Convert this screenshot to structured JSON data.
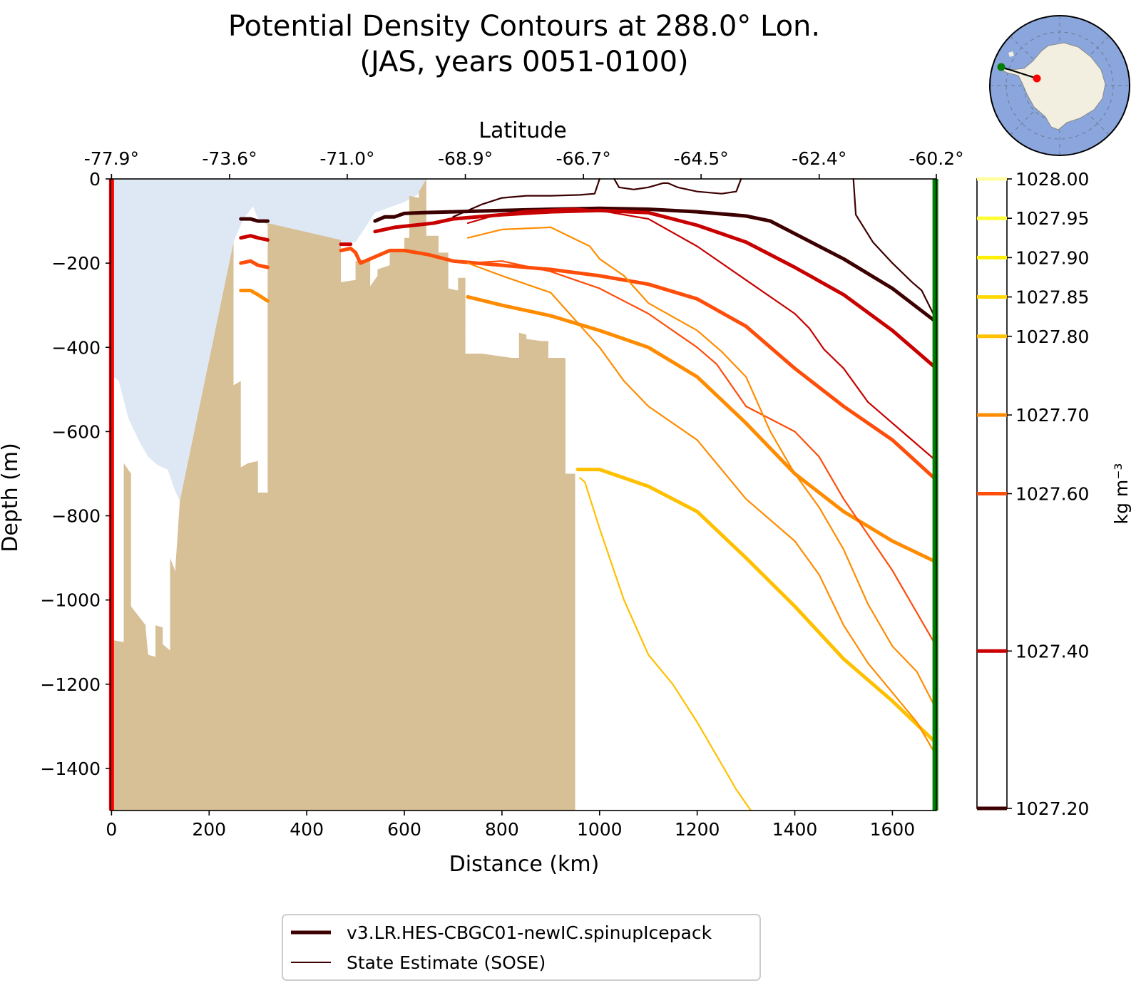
{
  "chart_data": {
    "type": "line",
    "title": "Potential Density Contours at 288.0° Lon.",
    "subtitle": "(JAS, years 0051-0100)",
    "xlabel": "Distance (km)",
    "ylabel": "Depth (m)",
    "top_axis_label": "Latitude",
    "xlim": [
      -2,
      1690
    ],
    "ylim": [
      -1500,
      0
    ],
    "x_ticks": [
      0,
      200,
      400,
      600,
      800,
      1000,
      1200,
      1400,
      1600
    ],
    "y_ticks": [
      0,
      -200,
      -400,
      -600,
      -800,
      -1000,
      -1200,
      -1400
    ],
    "lat_ticks": [
      {
        "x": 0,
        "label": "-77.9°"
      },
      {
        "x": 242,
        "label": "-73.6°"
      },
      {
        "x": 483,
        "label": "-71.0°"
      },
      {
        "x": 725,
        "label": "-68.9°"
      },
      {
        "x": 967,
        "label": "-66.7°"
      },
      {
        "x": 1208,
        "label": "-64.5°"
      },
      {
        "x": 1450,
        "label": "-62.4°"
      },
      {
        "x": 1690,
        "label": "-60.2°"
      }
    ],
    "colorbar": {
      "label": "kg m⁻³",
      "levels": [
        {
          "value": 1027.2,
          "label": "1027.20",
          "color": "#3d0000"
        },
        {
          "value": 1027.4,
          "label": "1027.40",
          "color": "#c80000"
        },
        {
          "value": 1027.6,
          "label": "1027.60",
          "color": "#ff4d0a"
        },
        {
          "value": 1027.7,
          "label": "1027.70",
          "color": "#ff8c00"
        },
        {
          "value": 1027.8,
          "label": "1027.80",
          "color": "#ffc000"
        },
        {
          "value": 1027.85,
          "label": "1027.85",
          "color": "#ffd800"
        },
        {
          "value": 1027.9,
          "label": "1027.90",
          "color": "#fff000"
        },
        {
          "value": 1027.95,
          "label": "1027.95",
          "color": "#ffff30"
        },
        {
          "value": 1028.0,
          "label": "1028.00",
          "color": "#ffffa0"
        }
      ]
    },
    "legend": {
      "placement": "bottom-center",
      "entries": [
        {
          "label": "v3.LR.HES-CBGC01-newIC.spinupIcepack",
          "style": "thick",
          "color": "#3d0000"
        },
        {
          "label": "State Estimate (SOSE)",
          "style": "thin",
          "color": "#3d0000"
        }
      ]
    },
    "section_markers": {
      "start_color": "#ff0000",
      "end_color": "#008000",
      "start_x": 0,
      "end_x": 1688
    },
    "fills": {
      "ice_shelf_color": "#dee8f5",
      "bathymetry_color": "#d7bf96"
    },
    "ice_shelf_base": [
      [
        0,
        -465
      ],
      [
        15,
        -480
      ],
      [
        35,
        -570
      ],
      [
        60,
        -630
      ],
      [
        75,
        -660
      ],
      [
        95,
        -680
      ],
      [
        115,
        -690
      ],
      [
        130,
        -740
      ],
      [
        140,
        -765
      ],
      [
        250,
        -150
      ],
      [
        270,
        -95
      ],
      [
        290,
        -65
      ],
      [
        300,
        -95
      ],
      [
        320,
        -110
      ],
      [
        400,
        -140
      ],
      [
        470,
        -150
      ],
      [
        500,
        -150
      ],
      [
        540,
        -80
      ],
      [
        600,
        -55
      ],
      [
        630,
        -35
      ],
      [
        645,
        0
      ]
    ],
    "bathymetry": [
      [
        0,
        -1500
      ],
      [
        0,
        -1095
      ],
      [
        25,
        -1100
      ],
      [
        25,
        -675
      ],
      [
        40,
        -700
      ],
      [
        40,
        -1015
      ],
      [
        70,
        -1060
      ],
      [
        70,
        -1070
      ],
      [
        75,
        -1130
      ],
      [
        90,
        -1135
      ],
      [
        90,
        -1060
      ],
      [
        105,
        -1065
      ],
      [
        105,
        -1105
      ],
      [
        120,
        -1120
      ],
      [
        120,
        -900
      ],
      [
        130,
        -930
      ],
      [
        130,
        -940
      ],
      [
        140,
        -765
      ],
      [
        250,
        -150
      ],
      [
        250,
        -490
      ],
      [
        265,
        -480
      ],
      [
        265,
        -685
      ],
      [
        280,
        -675
      ],
      [
        300,
        -670
      ],
      [
        300,
        -745
      ],
      [
        320,
        -745
      ],
      [
        320,
        -105
      ],
      [
        470,
        -145
      ],
      [
        470,
        -245
      ],
      [
        500,
        -240
      ],
      [
        500,
        -195
      ],
      [
        530,
        -190
      ],
      [
        530,
        -255
      ],
      [
        545,
        -230
      ],
      [
        545,
        -215
      ],
      [
        570,
        -205
      ],
      [
        570,
        -175
      ],
      [
        600,
        -170
      ],
      [
        600,
        -140
      ],
      [
        610,
        -140
      ],
      [
        610,
        -40
      ],
      [
        630,
        -45
      ],
      [
        630,
        -30
      ],
      [
        645,
        0
      ],
      [
        645,
        -135
      ],
      [
        670,
        -135
      ],
      [
        670,
        -175
      ],
      [
        690,
        -175
      ],
      [
        690,
        -260
      ],
      [
        710,
        -265
      ],
      [
        710,
        -235
      ],
      [
        725,
        -235
      ],
      [
        725,
        -415
      ],
      [
        760,
        -415
      ],
      [
        790,
        -420
      ],
      [
        820,
        -425
      ],
      [
        835,
        -425
      ],
      [
        835,
        -365
      ],
      [
        850,
        -370
      ],
      [
        850,
        -380
      ],
      [
        880,
        -385
      ],
      [
        895,
        -385
      ],
      [
        895,
        -425
      ],
      [
        908,
        -425
      ],
      [
        908,
        -425
      ],
      [
        930,
        -425
      ],
      [
        930,
        -700
      ],
      [
        950,
        -700
      ],
      [
        950,
        -1500
      ]
    ],
    "series": [
      {
        "source": "model",
        "level": 1027.2,
        "points": [
          [
            265,
            -95
          ],
          [
            285,
            -95
          ],
          [
            300,
            -100
          ],
          [
            320,
            -100
          ]
        ]
      },
      {
        "source": "model",
        "level": 1027.2,
        "points": [
          [
            540,
            -100
          ],
          [
            560,
            -90
          ],
          [
            580,
            -90
          ],
          [
            600,
            -82
          ],
          [
            640,
            -80
          ],
          [
            700,
            -78
          ],
          [
            800,
            -75
          ],
          [
            900,
            -72
          ],
          [
            1000,
            -70
          ],
          [
            1100,
            -72
          ],
          [
            1200,
            -78
          ],
          [
            1300,
            -88
          ],
          [
            1350,
            -100
          ],
          [
            1400,
            -130
          ],
          [
            1500,
            -190
          ],
          [
            1600,
            -260
          ],
          [
            1690,
            -340
          ]
        ]
      },
      {
        "source": "model",
        "level": 1027.4,
        "points": [
          [
            265,
            -140
          ],
          [
            285,
            -135
          ],
          [
            300,
            -140
          ],
          [
            320,
            -145
          ]
        ]
      },
      {
        "source": "model",
        "level": 1027.4,
        "points": [
          [
            470,
            -155
          ],
          [
            490,
            -155
          ]
        ]
      },
      {
        "source": "model",
        "level": 1027.4,
        "points": [
          [
            540,
            -125
          ],
          [
            580,
            -115
          ],
          [
            620,
            -110
          ],
          [
            660,
            -105
          ],
          [
            700,
            -95
          ],
          [
            800,
            -85
          ],
          [
            900,
            -78
          ],
          [
            1000,
            -75
          ],
          [
            1100,
            -80
          ],
          [
            1200,
            -110
          ],
          [
            1300,
            -150
          ],
          [
            1400,
            -210
          ],
          [
            1500,
            -275
          ],
          [
            1600,
            -360
          ],
          [
            1690,
            -450
          ]
        ]
      },
      {
        "source": "model",
        "level": 1027.6,
        "points": [
          [
            265,
            -200
          ],
          [
            285,
            -195
          ],
          [
            300,
            -205
          ],
          [
            320,
            -210
          ]
        ]
      },
      {
        "source": "model",
        "level": 1027.6,
        "points": [
          [
            470,
            -170
          ],
          [
            490,
            -165
          ],
          [
            500,
            -175
          ],
          [
            510,
            -200
          ],
          [
            530,
            -190
          ],
          [
            550,
            -180
          ],
          [
            570,
            -170
          ],
          [
            600,
            -170
          ],
          [
            650,
            -180
          ],
          [
            700,
            -195
          ],
          [
            800,
            -205
          ],
          [
            900,
            -215
          ],
          [
            1000,
            -230
          ],
          [
            1100,
            -250
          ],
          [
            1200,
            -285
          ],
          [
            1300,
            -350
          ],
          [
            1400,
            -450
          ],
          [
            1500,
            -540
          ],
          [
            1600,
            -620
          ],
          [
            1690,
            -715
          ]
        ]
      },
      {
        "source": "model",
        "level": 1027.7,
        "points": [
          [
            265,
            -265
          ],
          [
            285,
            -265
          ],
          [
            300,
            -275
          ],
          [
            320,
            -290
          ]
        ]
      },
      {
        "source": "model",
        "level": 1027.7,
        "points": [
          [
            730,
            -280
          ],
          [
            800,
            -300
          ],
          [
            900,
            -325
          ],
          [
            1000,
            -360
          ],
          [
            1100,
            -400
          ],
          [
            1200,
            -470
          ],
          [
            1300,
            -580
          ],
          [
            1400,
            -700
          ],
          [
            1500,
            -790
          ],
          [
            1600,
            -860
          ],
          [
            1690,
            -910
          ]
        ]
      },
      {
        "source": "model",
        "level": 1027.8,
        "points": [
          [
            955,
            -690
          ],
          [
            1000,
            -690
          ],
          [
            1100,
            -730
          ],
          [
            1200,
            -790
          ],
          [
            1300,
            -900
          ],
          [
            1400,
            -1015
          ],
          [
            1500,
            -1140
          ],
          [
            1600,
            -1240
          ],
          [
            1690,
            -1340
          ]
        ]
      },
      {
        "source": "sose",
        "level": 1027.2,
        "points": [
          [
            700,
            -90
          ],
          [
            760,
            -60
          ],
          [
            800,
            -45
          ],
          [
            850,
            -40
          ],
          [
            900,
            -40
          ],
          [
            960,
            -38
          ],
          [
            990,
            -35
          ],
          [
            1000,
            0
          ]
        ]
      },
      {
        "source": "sose",
        "level": 1027.2,
        "points": [
          [
            1030,
            0
          ],
          [
            1040,
            -20
          ],
          [
            1070,
            -25
          ],
          [
            1100,
            -20
          ],
          [
            1130,
            -10
          ],
          [
            1140,
            -10
          ],
          [
            1160,
            -20
          ],
          [
            1200,
            -30
          ],
          [
            1250,
            -35
          ],
          [
            1280,
            -30
          ],
          [
            1290,
            0
          ]
        ]
      },
      {
        "source": "sose",
        "level": 1027.2,
        "points": [
          [
            1520,
            0
          ],
          [
            1525,
            -85
          ],
          [
            1560,
            -150
          ],
          [
            1600,
            -200
          ],
          [
            1640,
            -245
          ],
          [
            1660,
            -265
          ],
          [
            1690,
            -335
          ]
        ]
      },
      {
        "source": "sose",
        "level": 1027.4,
        "points": [
          [
            730,
            -105
          ],
          [
            790,
            -85
          ],
          [
            850,
            -75
          ],
          [
            950,
            -70
          ],
          [
            1000,
            -75
          ],
          [
            1100,
            -95
          ],
          [
            1200,
            -160
          ],
          [
            1300,
            -240
          ],
          [
            1400,
            -320
          ],
          [
            1430,
            -355
          ],
          [
            1460,
            -405
          ],
          [
            1500,
            -450
          ],
          [
            1550,
            -530
          ],
          [
            1600,
            -580
          ],
          [
            1690,
            -670
          ]
        ]
      },
      {
        "source": "sose",
        "level": 1027.6,
        "points": [
          [
            730,
            -200
          ],
          [
            800,
            -195
          ],
          [
            900,
            -220
          ],
          [
            1000,
            -260
          ],
          [
            1100,
            -320
          ],
          [
            1200,
            -400
          ],
          [
            1240,
            -440
          ],
          [
            1300,
            -540
          ],
          [
            1400,
            -600
          ],
          [
            1450,
            -660
          ],
          [
            1500,
            -760
          ],
          [
            1600,
            -930
          ],
          [
            1690,
            -1110
          ]
        ]
      },
      {
        "source": "sose",
        "level": 1027.7,
        "points": [
          [
            730,
            -140
          ],
          [
            800,
            -120
          ],
          [
            900,
            -115
          ],
          [
            980,
            -160
          ],
          [
            1000,
            -190
          ],
          [
            1050,
            -230
          ],
          [
            1100,
            -295
          ],
          [
            1200,
            -360
          ],
          [
            1250,
            -410
          ],
          [
            1300,
            -470
          ],
          [
            1350,
            -600
          ],
          [
            1400,
            -700
          ],
          [
            1450,
            -780
          ],
          [
            1500,
            -880
          ],
          [
            1550,
            -1010
          ],
          [
            1600,
            -1110
          ],
          [
            1650,
            -1170
          ],
          [
            1690,
            -1260
          ]
        ]
      },
      {
        "source": "sose",
        "level": 1027.7,
        "points": [
          [
            730,
            -200
          ],
          [
            800,
            -230
          ],
          [
            900,
            -270
          ],
          [
            1000,
            -400
          ],
          [
            1050,
            -480
          ],
          [
            1100,
            -540
          ],
          [
            1200,
            -620
          ],
          [
            1300,
            -760
          ],
          [
            1400,
            -860
          ],
          [
            1450,
            -940
          ],
          [
            1500,
            -1060
          ],
          [
            1550,
            -1150
          ],
          [
            1600,
            -1220
          ],
          [
            1650,
            -1290
          ],
          [
            1690,
            -1370
          ]
        ]
      },
      {
        "source": "sose",
        "level": 1027.8,
        "points": [
          [
            960,
            -710
          ],
          [
            970,
            -720
          ],
          [
            1000,
            -830
          ],
          [
            1050,
            -1000
          ],
          [
            1100,
            -1130
          ],
          [
            1150,
            -1200
          ],
          [
            1200,
            -1290
          ],
          [
            1250,
            -1390
          ],
          [
            1280,
            -1450
          ],
          [
            1310,
            -1500
          ]
        ]
      }
    ]
  }
}
